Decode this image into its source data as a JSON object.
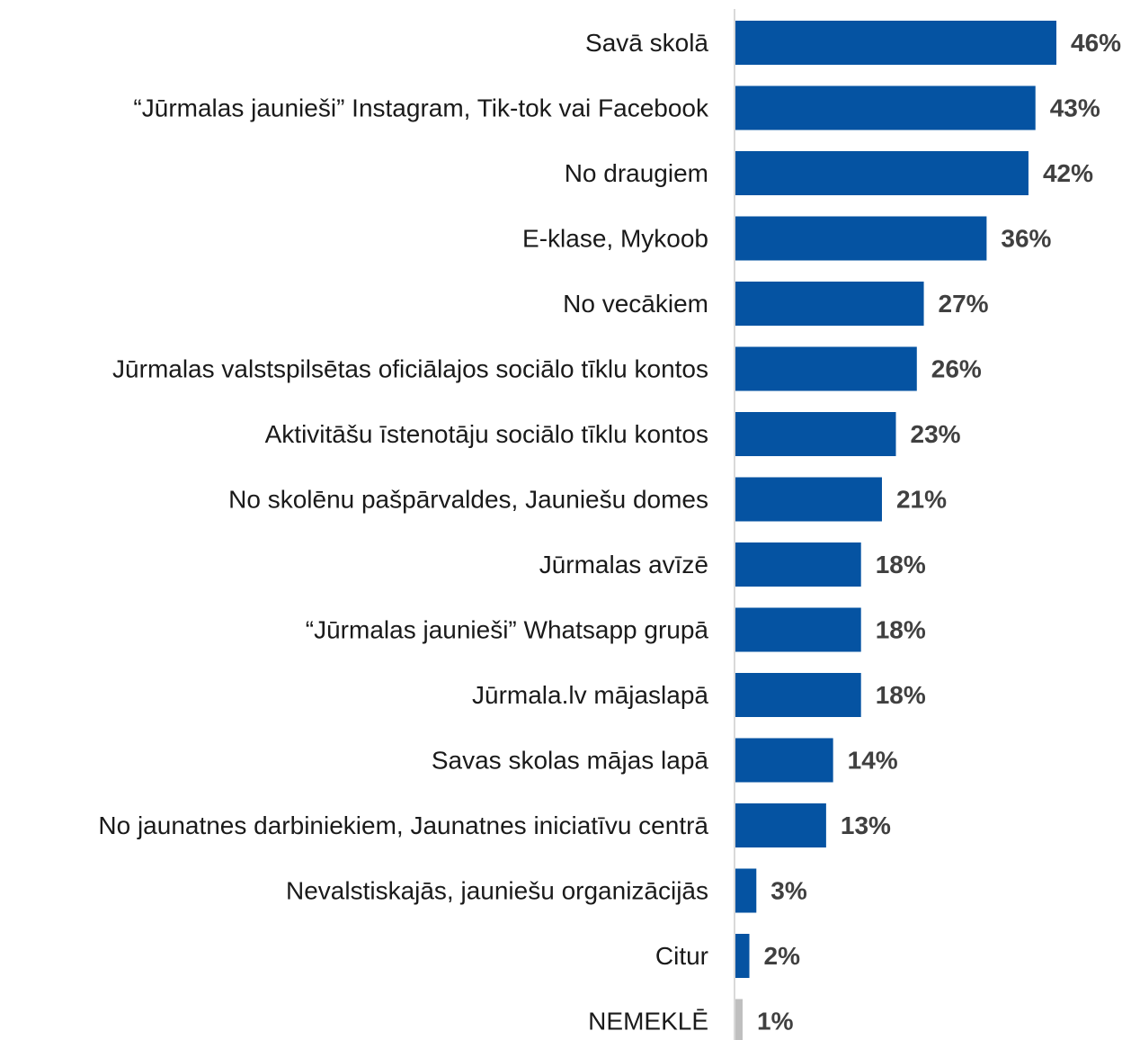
{
  "chart_data": {
    "type": "bar",
    "orientation": "horizontal",
    "title": "",
    "xlabel": "",
    "ylabel": "",
    "grid": false,
    "legend": "none",
    "xlim": [
      0,
      46
    ],
    "categories": [
      "Savā skolā",
      "“Jūrmalas jaunieši” Instagram, Tik-tok vai Facebook",
      "No draugiem",
      "E-klase, Mykoob",
      "No vecākiem",
      "Jūrmalas valstspilsētas oficiālajos sociālo tīklu kontos",
      "Aktivitāšu īstenotāju sociālo tīklu kontos",
      "No skolēnu pašpārvaldes, Jauniešu domes",
      "Jūrmalas avīzē",
      "“Jūrmalas jaunieši” Whatsapp grupā",
      "Jūrmala.lv mājaslapā",
      "Savas skolas mājas lapā",
      "No jaunatnes darbiniekiem, Jaunatnes iniciatīvu centrā",
      "Nevalstiskajās, jauniešu organizācijās",
      "Citur",
      "NEMEKLĒ"
    ],
    "values": [
      46,
      43,
      42,
      36,
      27,
      26,
      23,
      21,
      18,
      18,
      18,
      14,
      13,
      3,
      2,
      1
    ],
    "value_labels": [
      "46%",
      "43%",
      "42%",
      "36%",
      "27%",
      "26%",
      "23%",
      "21%",
      "18%",
      "18%",
      "18%",
      "14%",
      "13%",
      "3%",
      "2%",
      "1%"
    ],
    "bar_colors": [
      "#0553a2",
      "#0553a2",
      "#0553a2",
      "#0553a2",
      "#0553a2",
      "#0553a2",
      "#0553a2",
      "#0553a2",
      "#0553a2",
      "#0553a2",
      "#0553a2",
      "#0553a2",
      "#0553a2",
      "#0553a2",
      "#0553a2",
      "#bfbfbf"
    ],
    "colors": {
      "bar": "#0553a2",
      "bar_muted": "#bfbfbf",
      "axis": "#d9d9d9",
      "value_text": "#404040",
      "label_text": "#1a1a1a"
    }
  }
}
